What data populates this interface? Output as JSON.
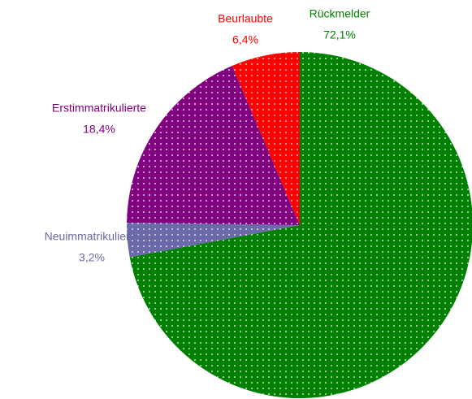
{
  "chart_data": {
    "type": "pie",
    "categories": [
      "Rückmelder",
      "Neuimmatrikulierte",
      "Erstimmatrikulierte",
      "Beurlaubte"
    ],
    "values": [
      72.1,
      3.2,
      18.4,
      6.4
    ],
    "value_labels": [
      "72,1%",
      "3,2%",
      "18,4%",
      "6,4%"
    ],
    "colors": [
      "#008000",
      "#6a6aa8",
      "#800080",
      "#ff0000"
    ],
    "start_angle": 0,
    "direction": "clockwise"
  }
}
